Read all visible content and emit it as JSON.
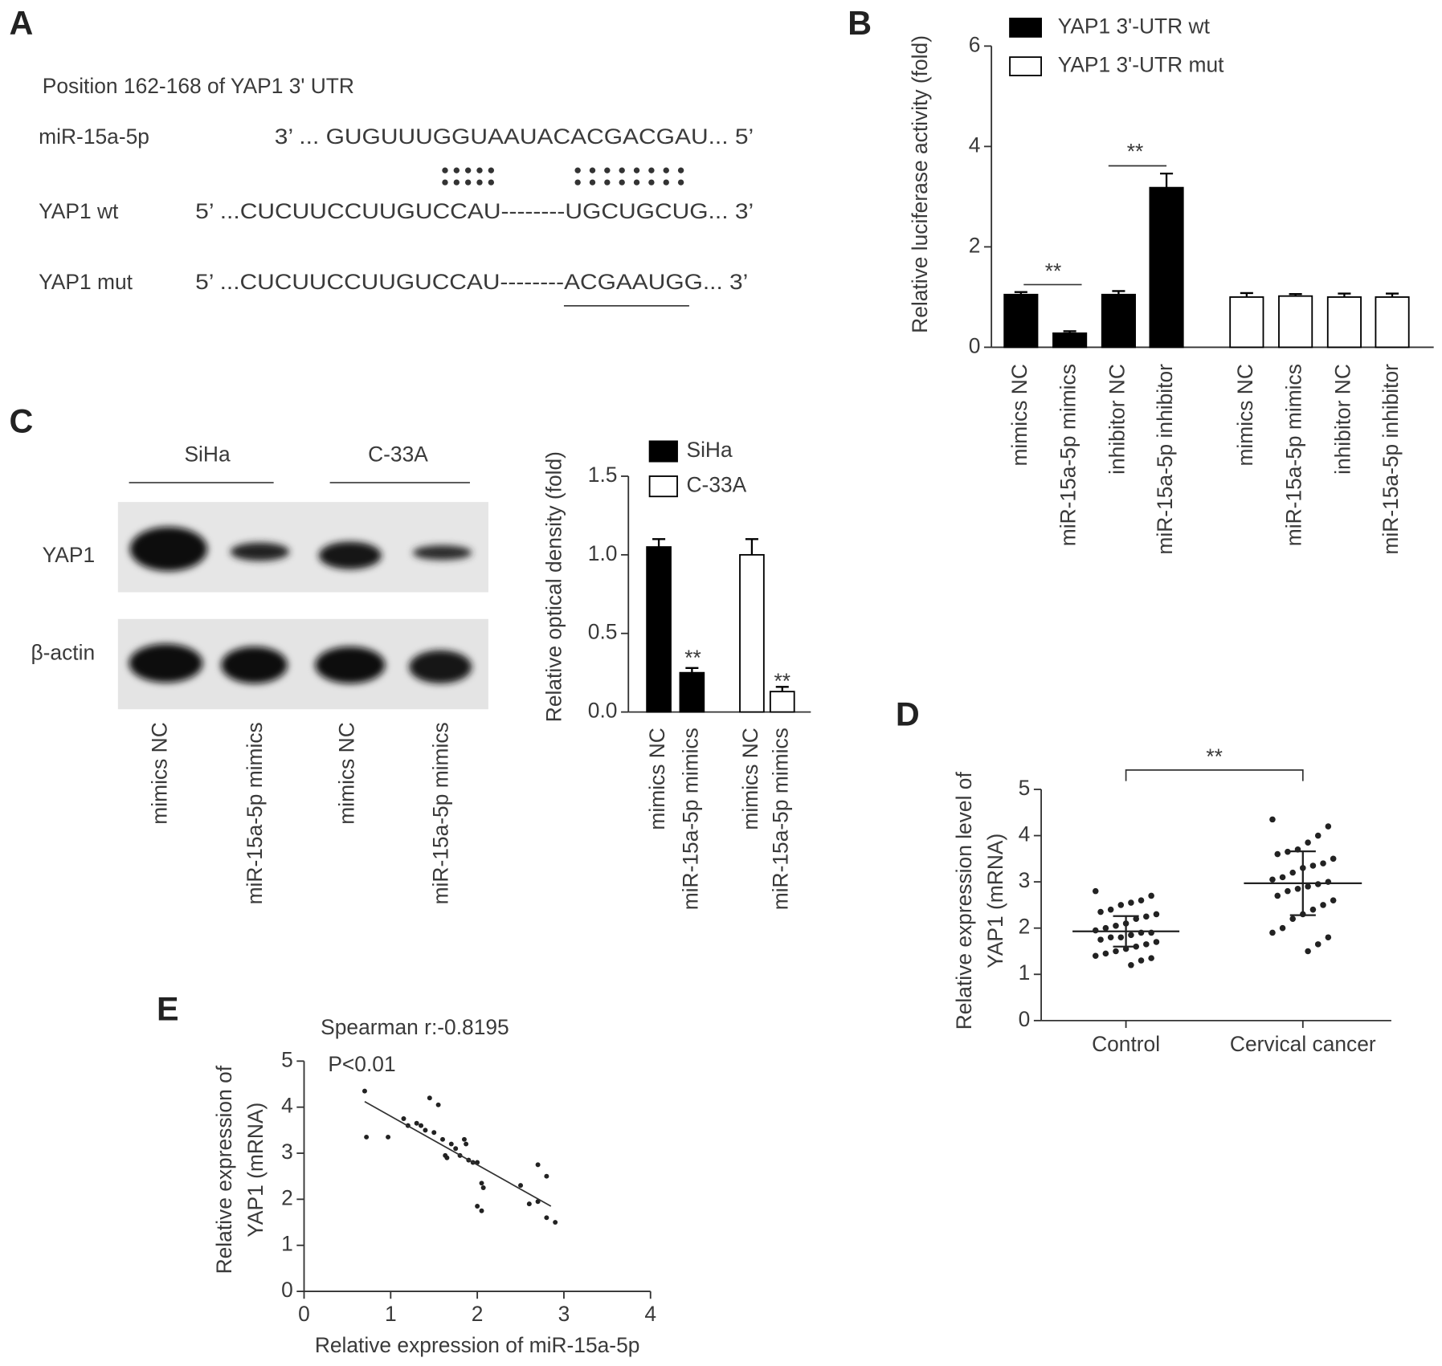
{
  "panel_labels": [
    "A",
    "B",
    "C",
    "D",
    "E"
  ],
  "sequence": {
    "title": "Position 162-168 of YAP1 3' UTR",
    "rows": [
      {
        "label": "miR-15a-5p",
        "seq": "3’ ... GUGUUUGGUAAUACACGACGAU... 5’"
      },
      {
        "label": "YAP1 wt",
        "seq": "5’ ...CUCUUCCUUGUCCAU--------UGCUGCUG... 3’"
      },
      {
        "label": "YAP1 mut",
        "seq": "5’ ...CUCUUCCUUGUCCAU--------ACGAAUGG... 3’"
      }
    ]
  },
  "blot": {
    "groups": [
      "SiHa",
      "C-33A"
    ],
    "rows": [
      "YAP1",
      "β-actin"
    ],
    "lanes": [
      "mimics NC",
      "miR-15a-5p mimics",
      "mimics NC",
      "miR-15a-5p mimics"
    ]
  },
  "chart_data": [
    {
      "type": "bar",
      "y_label": "Relative luciferase activity (fold)",
      "categories": [
        "mimics NC",
        "miR-15a-5p mimics",
        "inhibitor NC",
        "miR-15a-5p inhibitor",
        "mimics NC",
        "miR-15a-5p mimics",
        "inhibitor NC",
        "miR-15a-5p inhibitor"
      ],
      "series": [
        {
          "name": "YAP1 3'-UTR wt",
          "color": "#000000",
          "values": [
            1.05,
            0.28,
            1.05,
            3.18,
            null,
            null,
            null,
            null
          ],
          "errors": [
            0.05,
            0.04,
            0.07,
            0.28,
            null,
            null,
            null,
            null
          ]
        },
        {
          "name": "YAP1 3'-UTR mut",
          "color": "#ffffff",
          "values": [
            null,
            null,
            null,
            null,
            1.0,
            1.02,
            1.0,
            1.0
          ],
          "errors": [
            null,
            null,
            null,
            null,
            0.08,
            0.04,
            0.07,
            0.07
          ]
        }
      ],
      "ylim": [
        0,
        6
      ],
      "yticks": [
        0,
        2,
        4,
        6
      ],
      "annotations": [
        "**",
        "**"
      ]
    },
    {
      "type": "bar",
      "y_label": "Relative optical density  (fold)",
      "categories": [
        "mimics NC",
        "miR-15a-5p mimics",
        "mimics NC",
        "miR-15a-5p mimics"
      ],
      "series": [
        {
          "name": "SiHa",
          "color": "#000000",
          "values": [
            1.05,
            0.25,
            null,
            null
          ],
          "errors": [
            0.05,
            0.03,
            null,
            null
          ]
        },
        {
          "name": "C-33A",
          "color": "#ffffff",
          "values": [
            null,
            null,
            1.0,
            0.13
          ],
          "errors": [
            null,
            null,
            0.1,
            0.03
          ]
        }
      ],
      "ylim": [
        0,
        1.5
      ],
      "yticks": [
        {
          "value": 0,
          "label": "0.0"
        },
        0.5,
        {
          "value": 1,
          "label": "1.0"
        },
        1.5
      ],
      "annotations": [
        "**",
        "**"
      ]
    },
    {
      "type": "strip",
      "y_label": [
        "Relative expression level of",
        "YAP1 (mRNA)"
      ],
      "categories": [
        "Control",
        "Cervical cancer"
      ],
      "groups": [
        [
          2.8,
          2.7,
          2.6,
          2.55,
          2.5,
          2.4,
          2.35,
          2.3,
          2.25,
          2.2,
          2.1,
          2.05,
          2.0,
          1.95,
          1.9,
          1.9,
          1.85,
          1.8,
          1.8,
          1.75,
          1.7,
          1.65,
          1.6,
          1.55,
          1.5,
          1.45,
          1.4,
          1.35,
          1.3,
          1.2
        ],
        [
          4.35,
          4.2,
          4.0,
          3.85,
          3.7,
          3.65,
          3.6,
          3.5,
          3.4,
          3.35,
          3.3,
          3.2,
          3.1,
          3.05,
          3.0,
          2.95,
          2.9,
          2.85,
          2.8,
          2.7,
          2.6,
          2.5,
          2.4,
          2.3,
          2.2,
          2.0,
          1.9,
          1.8,
          1.65,
          1.5
        ]
      ],
      "mean": [
        1.93,
        2.97
      ],
      "sd": [
        0.33,
        0.69
      ],
      "ylim": [
        0,
        5
      ],
      "yticks": [
        0,
        1,
        2,
        3,
        4,
        5
      ],
      "annotations": [
        "**"
      ]
    },
    {
      "type": "scatter",
      "title": "Spearman r:-0.8195",
      "subtitle": "P<0.01",
      "x_label": "Relative expression of miR-15a-5p",
      "y_label": [
        "Relative expression of",
        "YAP1 (mRNA)"
      ],
      "x": [
        0.7,
        0.72,
        0.97,
        1.15,
        1.2,
        1.3,
        1.35,
        1.4,
        1.45,
        1.55,
        1.5,
        1.6,
        1.63,
        1.65,
        1.7,
        1.75,
        1.8,
        1.85,
        1.87,
        1.9,
        1.95,
        2.0,
        2.0,
        2.05,
        2.05,
        2.07,
        2.5,
        2.6,
        2.7,
        2.7,
        2.8,
        2.8,
        2.9
      ],
      "y": [
        4.35,
        3.35,
        3.35,
        3.75,
        3.6,
        3.65,
        3.6,
        3.5,
        4.2,
        4.05,
        3.45,
        3.3,
        2.95,
        2.9,
        3.2,
        3.1,
        2.95,
        3.3,
        3.2,
        2.85,
        2.8,
        2.8,
        1.85,
        1.75,
        2.35,
        2.25,
        2.3,
        1.9,
        1.95,
        2.75,
        2.5,
        1.6,
        1.5
      ],
      "fit": {
        "x": [
          0.7,
          2.85
        ],
        "y": [
          4.12,
          1.85
        ]
      },
      "xlim": [
        0,
        4
      ],
      "xticks": [
        0,
        1,
        2,
        3,
        4
      ],
      "ylim": [
        0,
        5
      ],
      "yticks": [
        0,
        1,
        2,
        3,
        4,
        5
      ]
    }
  ]
}
